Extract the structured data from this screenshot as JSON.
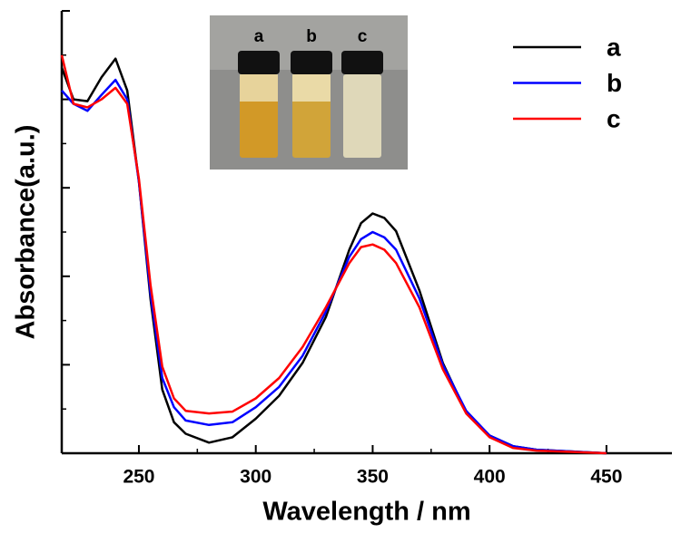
{
  "chart_data": {
    "type": "line",
    "x_label": "Wavelength / nm",
    "y_label": "Absorbance(a.u.)",
    "x": [
      217,
      222,
      228,
      234,
      240,
      245,
      250,
      255,
      260,
      265,
      270,
      280,
      290,
      300,
      310,
      320,
      330,
      340,
      345,
      350,
      355,
      360,
      370,
      380,
      390,
      400,
      410,
      420,
      450
    ],
    "series": [
      {
        "name": "a",
        "color": "#000000",
        "values": [
          4.36,
          4.0,
          3.98,
          4.25,
          4.46,
          4.1,
          3.07,
          1.74,
          0.72,
          0.35,
          0.22,
          0.12,
          0.18,
          0.39,
          0.65,
          1.02,
          1.54,
          2.3,
          2.6,
          2.71,
          2.66,
          2.51,
          1.84,
          1.02,
          0.46,
          0.2,
          0.08,
          0.04,
          0
        ]
      },
      {
        "name": "b",
        "color": "#0000ff",
        "values": [
          4.1,
          3.95,
          3.87,
          4.05,
          4.22,
          4.0,
          3.07,
          1.8,
          0.85,
          0.52,
          0.37,
          0.32,
          0.35,
          0.52,
          0.75,
          1.1,
          1.6,
          2.22,
          2.42,
          2.5,
          2.44,
          2.3,
          1.75,
          1.0,
          0.48,
          0.2,
          0.08,
          0.04,
          0
        ]
      },
      {
        "name": "c",
        "color": "#ff0000",
        "values": [
          4.5,
          3.95,
          3.91,
          4.0,
          4.13,
          3.95,
          3.1,
          1.9,
          0.98,
          0.62,
          0.48,
          0.45,
          0.47,
          0.62,
          0.85,
          1.2,
          1.65,
          2.15,
          2.33,
          2.36,
          2.3,
          2.15,
          1.65,
          0.95,
          0.45,
          0.18,
          0.06,
          0.03,
          0
        ]
      }
    ],
    "xlim": [
      217,
      478
    ],
    "xticks": [
      250,
      300,
      350,
      400,
      450
    ],
    "ylim": [
      0,
      5
    ],
    "yticks": [
      0,
      1,
      2,
      3,
      4,
      5
    ],
    "legend": "upper right",
    "inset_labels": [
      "a",
      "b",
      "c"
    ]
  }
}
